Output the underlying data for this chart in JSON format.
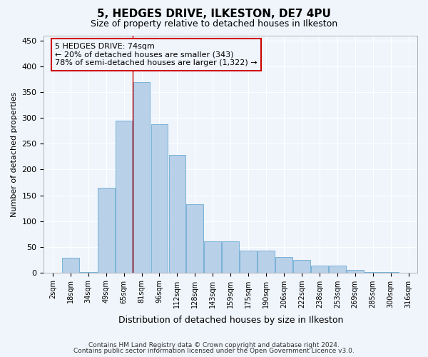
{
  "title1": "5, HEDGES DRIVE, ILKESTON, DE7 4PU",
  "title2": "Size of property relative to detached houses in Ilkeston",
  "xlabel": "Distribution of detached houses by size in Ilkeston",
  "ylabel": "Number of detached properties",
  "categories": [
    "2sqm",
    "18sqm",
    "34sqm",
    "49sqm",
    "65sqm",
    "81sqm",
    "96sqm",
    "112sqm",
    "128sqm",
    "143sqm",
    "159sqm",
    "175sqm",
    "190sqm",
    "206sqm",
    "222sqm",
    "238sqm",
    "253sqm",
    "269sqm",
    "285sqm",
    "300sqm",
    "316sqm"
  ],
  "values": [
    0,
    28,
    1,
    165,
    295,
    370,
    288,
    228,
    133,
    60,
    60,
    43,
    43,
    30,
    24,
    13,
    14,
    5,
    1,
    1,
    0
  ],
  "bar_color": "#b8d0e8",
  "bar_edge_color": "#6aaad4",
  "annotation_text": "5 HEDGES DRIVE: 74sqm\n← 20% of detached houses are smaller (343)\n78% of semi-detached houses are larger (1,322) →",
  "vline_color": "#cc0000",
  "annotation_box_edge": "#cc0000",
  "footer1": "Contains HM Land Registry data © Crown copyright and database right 2024.",
  "footer2": "Contains public sector information licensed under the Open Government Licence v3.0.",
  "bg_color": "#f0f5fc",
  "ylim": [
    0,
    460
  ],
  "grid_color": "#ffffff",
  "title1_fontsize": 11,
  "title2_fontsize": 9,
  "ylabel_fontsize": 8,
  "xlabel_fontsize": 9
}
